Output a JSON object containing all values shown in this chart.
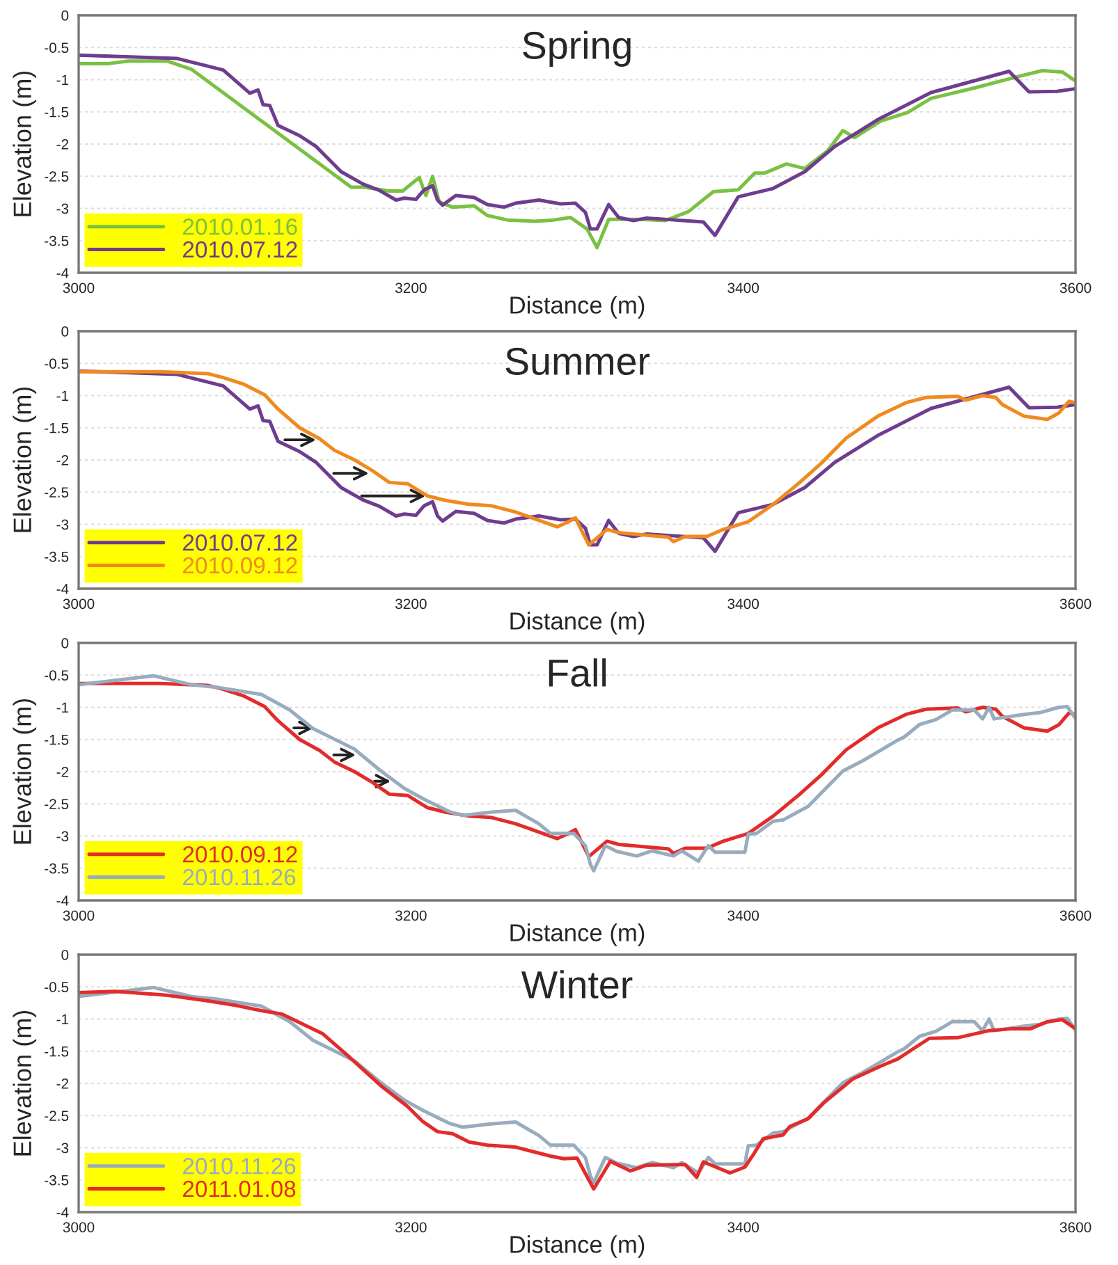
{
  "chart_data": [
    {
      "type": "line",
      "title": "Spring",
      "xlabel": "Distance (m)",
      "ylabel": "Elevation (m)",
      "xlim": [
        3000,
        3600
      ],
      "ylim": [
        -4,
        0
      ],
      "xticks": [
        3000,
        3200,
        3400,
        3600
      ],
      "yticks": [
        -4,
        -3.5,
        -3,
        -2.5,
        -2,
        -1.5,
        -1,
        -0.5,
        0
      ],
      "grid": "y",
      "legend": "bottom left",
      "marker": "none",
      "line_style": "solid",
      "series": [
        {
          "name": "2010.01.16",
          "color": "#7ac143",
          "x": [
            3000,
            3018,
            3030,
            3053,
            3068,
            3164,
            3172,
            3187,
            3195,
            3205,
            3209,
            3213,
            3217,
            3225,
            3238,
            3246,
            3258,
            3275,
            3286,
            3296,
            3306,
            3312,
            3319,
            3338,
            3353,
            3367,
            3382,
            3397,
            3407,
            3413,
            3426,
            3437,
            3451,
            3460,
            3467,
            3483,
            3499,
            3513,
            3539,
            3564,
            3580,
            3592,
            3600
          ],
          "values": [
            -0.75,
            -0.75,
            -0.71,
            -0.71,
            -0.84,
            -2.67,
            -2.67,
            -2.73,
            -2.73,
            -2.52,
            -2.8,
            -2.5,
            -2.9,
            -2.98,
            -2.96,
            -3.11,
            -3.18,
            -3.2,
            -3.18,
            -3.14,
            -3.32,
            -3.61,
            -3.17,
            -3.17,
            -3.19,
            -3.05,
            -2.74,
            -2.71,
            -2.45,
            -2.45,
            -2.31,
            -2.38,
            -2.1,
            -1.79,
            -1.9,
            -1.64,
            -1.51,
            -1.29,
            -1.13,
            -0.96,
            -0.86,
            -0.88,
            -1.02
          ]
        },
        {
          "name": "2010.07.12",
          "color": "#6e3d8f",
          "x": [
            3000,
            3059,
            3087,
            3103,
            3108,
            3111,
            3115,
            3120,
            3133,
            3143,
            3158,
            3171,
            3181,
            3191,
            3196,
            3203,
            3208,
            3213,
            3216,
            3219,
            3227,
            3238,
            3246,
            3256,
            3263,
            3277,
            3290,
            3299,
            3305,
            3308,
            3312,
            3319,
            3325,
            3334,
            3342,
            3376,
            3383,
            3397,
            3418,
            3437,
            3455,
            3481,
            3513,
            3560,
            3572,
            3589,
            3600
          ],
          "values": [
            -0.62,
            -0.67,
            -0.85,
            -1.21,
            -1.16,
            -1.39,
            -1.4,
            -1.71,
            -1.87,
            -2.04,
            -2.43,
            -2.62,
            -2.72,
            -2.87,
            -2.84,
            -2.86,
            -2.71,
            -2.65,
            -2.87,
            -2.95,
            -2.8,
            -2.83,
            -2.94,
            -2.98,
            -2.92,
            -2.87,
            -2.93,
            -2.92,
            -3.06,
            -3.32,
            -3.32,
            -2.94,
            -3.14,
            -3.19,
            -3.15,
            -3.21,
            -3.42,
            -2.82,
            -2.69,
            -2.43,
            -2.04,
            -1.62,
            -1.2,
            -0.87,
            -1.19,
            -1.18,
            -1.14
          ]
        }
      ]
    },
    {
      "type": "line",
      "title": "Summer",
      "xlabel": "Distance (m)",
      "ylabel": "Elevation (m)",
      "xlim": [
        3000,
        3600
      ],
      "ylim": [
        -4,
        0
      ],
      "xticks": [
        3000,
        3200,
        3400,
        3600
      ],
      "yticks": [
        -4,
        -3.5,
        -3,
        -2.5,
        -2,
        -1.5,
        -1,
        -0.5,
        0
      ],
      "grid": "y",
      "legend": "bottom left",
      "marker": "none",
      "line_style": "solid",
      "series": [
        {
          "name": "2010.07.12",
          "color": "#6e3d8f",
          "x": [
            3000,
            3059,
            3087,
            3103,
            3108,
            3111,
            3115,
            3120,
            3133,
            3143,
            3158,
            3171,
            3181,
            3191,
            3196,
            3203,
            3208,
            3213,
            3216,
            3219,
            3227,
            3238,
            3246,
            3256,
            3263,
            3277,
            3290,
            3299,
            3305,
            3308,
            3312,
            3319,
            3325,
            3334,
            3342,
            3376,
            3383,
            3397,
            3418,
            3437,
            3455,
            3481,
            3513,
            3560,
            3572,
            3589,
            3600
          ],
          "values": [
            -0.62,
            -0.67,
            -0.85,
            -1.21,
            -1.16,
            -1.39,
            -1.4,
            -1.71,
            -1.87,
            -2.04,
            -2.43,
            -2.62,
            -2.72,
            -2.87,
            -2.84,
            -2.86,
            -2.71,
            -2.65,
            -2.87,
            -2.95,
            -2.8,
            -2.83,
            -2.94,
            -2.98,
            -2.92,
            -2.87,
            -2.93,
            -2.92,
            -3.06,
            -3.32,
            -3.32,
            -2.94,
            -3.14,
            -3.19,
            -3.15,
            -3.21,
            -3.42,
            -2.82,
            -2.69,
            -2.43,
            -2.04,
            -1.62,
            -1.2,
            -0.87,
            -1.19,
            -1.18,
            -1.14
          ]
        },
        {
          "name": "2010.09.12",
          "color": "#f08a1e",
          "x": [
            3000,
            3049,
            3078,
            3087,
            3099,
            3112,
            3120,
            3133,
            3145,
            3154,
            3166,
            3177,
            3187,
            3198,
            3203,
            3210,
            3221,
            3235,
            3248,
            3263,
            3275,
            3288,
            3294,
            3299,
            3307,
            3318,
            3325,
            3342,
            3355,
            3358,
            3365,
            3378,
            3388,
            3403,
            3418,
            3434,
            3447,
            3462,
            3481,
            3498,
            3510,
            3529,
            3534,
            3544,
            3552,
            3556,
            3569,
            3583,
            3590,
            3596,
            3600
          ],
          "values": [
            -0.63,
            -0.63,
            -0.66,
            -0.72,
            -0.82,
            -0.99,
            -1.21,
            -1.5,
            -1.67,
            -1.85,
            -2.0,
            -2.17,
            -2.35,
            -2.37,
            -2.45,
            -2.56,
            -2.63,
            -2.69,
            -2.71,
            -2.81,
            -2.92,
            -3.04,
            -2.97,
            -2.9,
            -3.32,
            -3.08,
            -3.13,
            -3.17,
            -3.2,
            -3.27,
            -3.19,
            -3.19,
            -3.08,
            -2.96,
            -2.69,
            -2.35,
            -2.05,
            -1.66,
            -1.32,
            -1.11,
            -1.03,
            -1.01,
            -1.07,
            -1.0,
            -1.03,
            -1.14,
            -1.32,
            -1.37,
            -1.27,
            -1.09,
            -1.11
          ]
        }
      ]
    },
    {
      "type": "line",
      "title": "Fall",
      "xlabel": "Distance (m)",
      "ylabel": "Elevation (m)",
      "xlim": [
        3000,
        3600
      ],
      "ylim": [
        -4,
        0
      ],
      "xticks": [
        3000,
        3200,
        3400,
        3600
      ],
      "yticks": [
        -4,
        -3.5,
        -3,
        -2.5,
        -2,
        -1.5,
        -1,
        -0.5,
        0
      ],
      "grid": "y",
      "legend": "bottom left",
      "marker": "none",
      "line_style": "solid",
      "series": [
        {
          "name": "2010.09.12",
          "color": "#e32b2b",
          "x": [
            3000,
            3049,
            3078,
            3087,
            3099,
            3112,
            3120,
            3133,
            3145,
            3154,
            3166,
            3177,
            3187,
            3198,
            3203,
            3210,
            3221,
            3235,
            3248,
            3263,
            3275,
            3288,
            3294,
            3299,
            3307,
            3318,
            3325,
            3342,
            3355,
            3358,
            3365,
            3378,
            3388,
            3403,
            3418,
            3434,
            3447,
            3462,
            3481,
            3498,
            3510,
            3529,
            3534,
            3544,
            3552,
            3556,
            3569,
            3583,
            3590,
            3596,
            3600
          ],
          "values": [
            -0.63,
            -0.63,
            -0.66,
            -0.72,
            -0.82,
            -0.99,
            -1.21,
            -1.5,
            -1.67,
            -1.85,
            -2.0,
            -2.17,
            -2.35,
            -2.37,
            -2.45,
            -2.56,
            -2.63,
            -2.69,
            -2.71,
            -2.81,
            -2.92,
            -3.04,
            -2.97,
            -2.9,
            -3.32,
            -3.08,
            -3.13,
            -3.17,
            -3.2,
            -3.27,
            -3.19,
            -3.19,
            -3.08,
            -2.96,
            -2.69,
            -2.35,
            -2.05,
            -1.66,
            -1.32,
            -1.11,
            -1.03,
            -1.01,
            -1.07,
            -1.0,
            -1.03,
            -1.14,
            -1.32,
            -1.37,
            -1.27,
            -1.09,
            -1.11
          ]
        },
        {
          "name": "2010.11.26",
          "color": "#98acbe",
          "x": [
            3000,
            3045,
            3068,
            3083,
            3110,
            3127,
            3141,
            3166,
            3181,
            3196,
            3208,
            3223,
            3231,
            3248,
            3263,
            3277,
            3284,
            3298,
            3305,
            3308,
            3310,
            3317,
            3324,
            3336,
            3345,
            3358,
            3363,
            3373,
            3379,
            3383,
            3401,
            3403,
            3408,
            3418,
            3424,
            3439,
            3460,
            3472,
            3493,
            3497,
            3506,
            3516,
            3526,
            3539,
            3544,
            3548,
            3551,
            3569,
            3579,
            3590,
            3595,
            3600
          ],
          "values": [
            -0.65,
            -0.51,
            -0.65,
            -0.69,
            -0.8,
            -1.04,
            -1.33,
            -1.65,
            -1.97,
            -2.26,
            -2.43,
            -2.62,
            -2.68,
            -2.63,
            -2.6,
            -2.81,
            -2.96,
            -2.96,
            -3.15,
            -3.44,
            -3.54,
            -3.15,
            -3.24,
            -3.31,
            -3.23,
            -3.31,
            -3.23,
            -3.39,
            -3.15,
            -3.25,
            -3.25,
            -2.97,
            -2.96,
            -2.77,
            -2.75,
            -2.54,
            -1.99,
            -1.83,
            -1.51,
            -1.46,
            -1.27,
            -1.19,
            -1.04,
            -1.04,
            -1.18,
            -1.0,
            -1.18,
            -1.11,
            -1.08,
            -1.0,
            -0.99,
            -1.17
          ]
        }
      ]
    },
    {
      "type": "line",
      "title": "Winter",
      "xlabel": "Distance (m)",
      "ylabel": "Elevation (m)",
      "xlim": [
        3000,
        3600
      ],
      "ylim": [
        -4,
        0
      ],
      "xticks": [
        3000,
        3200,
        3400,
        3600
      ],
      "yticks": [
        -4,
        -3.5,
        -3,
        -2.5,
        -2,
        -1.5,
        -1,
        -0.5,
        0
      ],
      "grid": "y",
      "legend": "bottom left",
      "marker": "none",
      "line_style": "solid",
      "series": [
        {
          "name": "2010.11.26",
          "color": "#98acbe",
          "x": [
            3000,
            3045,
            3068,
            3083,
            3110,
            3127,
            3141,
            3166,
            3181,
            3196,
            3208,
            3223,
            3231,
            3248,
            3263,
            3277,
            3284,
            3298,
            3305,
            3308,
            3310,
            3317,
            3324,
            3336,
            3345,
            3358,
            3363,
            3373,
            3379,
            3383,
            3401,
            3403,
            3408,
            3418,
            3424,
            3439,
            3460,
            3472,
            3493,
            3497,
            3506,
            3516,
            3526,
            3539,
            3544,
            3548,
            3551,
            3569,
            3579,
            3590,
            3595,
            3600
          ],
          "values": [
            -0.65,
            -0.51,
            -0.65,
            -0.69,
            -0.8,
            -1.04,
            -1.33,
            -1.65,
            -1.97,
            -2.26,
            -2.43,
            -2.62,
            -2.68,
            -2.63,
            -2.6,
            -2.81,
            -2.96,
            -2.96,
            -3.15,
            -3.44,
            -3.54,
            -3.15,
            -3.24,
            -3.31,
            -3.23,
            -3.31,
            -3.23,
            -3.39,
            -3.15,
            -3.25,
            -3.25,
            -2.97,
            -2.96,
            -2.77,
            -2.75,
            -2.54,
            -1.99,
            -1.83,
            -1.51,
            -1.46,
            -1.27,
            -1.19,
            -1.04,
            -1.04,
            -1.18,
            -1.0,
            -1.18,
            -1.11,
            -1.08,
            -1.0,
            -0.99,
            -1.17
          ]
        },
        {
          "name": "2011.01.08",
          "color": "#e32b2b",
          "x": [
            3000,
            3022,
            3053,
            3078,
            3095,
            3110,
            3122,
            3147,
            3162,
            3183,
            3198,
            3207,
            3216,
            3225,
            3235,
            3246,
            3263,
            3284,
            3292,
            3300,
            3310,
            3320,
            3332,
            3342,
            3365,
            3372,
            3376,
            3392,
            3401,
            3406,
            3412,
            3424,
            3428,
            3439,
            3449,
            3466,
            3482,
            3493,
            3512,
            3529,
            3548,
            3562,
            3573,
            3583,
            3592,
            3600
          ],
          "values": [
            -0.59,
            -0.57,
            -0.63,
            -0.72,
            -0.79,
            -0.87,
            -0.92,
            -1.23,
            -1.57,
            -2.06,
            -2.36,
            -2.59,
            -2.75,
            -2.78,
            -2.91,
            -2.96,
            -2.99,
            -3.13,
            -3.17,
            -3.16,
            -3.64,
            -3.21,
            -3.36,
            -3.27,
            -3.26,
            -3.46,
            -3.22,
            -3.39,
            -3.3,
            -3.11,
            -2.86,
            -2.8,
            -2.67,
            -2.55,
            -2.29,
            -1.93,
            -1.74,
            -1.62,
            -1.3,
            -1.29,
            -1.18,
            -1.15,
            -1.15,
            -1.04,
            -1.01,
            -1.15
          ]
        }
      ]
    }
  ]
}
